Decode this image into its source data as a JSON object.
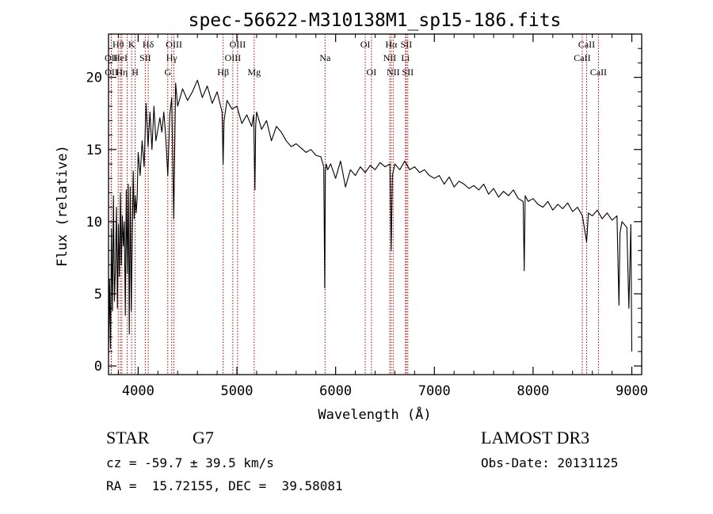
{
  "chart_data": {
    "type": "line",
    "title": "spec-56622-M310138M1_sp15-186.fits",
    "xlabel": "Wavelength (Å)",
    "ylabel": "Flux (relative)",
    "xlim": [
      3700,
      9100
    ],
    "ylim": [
      -0.6,
      23.0
    ],
    "xticks": [
      4000,
      5000,
      6000,
      7000,
      8000,
      9000
    ],
    "xtick_labels": [
      "4000",
      "5000",
      "6000",
      "7000",
      "8000",
      "9000"
    ],
    "yticks": [
      0,
      5,
      10,
      15,
      20
    ],
    "ytick_labels": [
      "0",
      "5",
      "10",
      "15",
      "20"
    ],
    "grid": false,
    "line_color": "#000000",
    "marker_color": "#aa0000",
    "series": [
      {
        "x": [
          3700,
          3710,
          3720,
          3730,
          3740,
          3750,
          3760,
          3770,
          3780,
          3790,
          3800,
          3810,
          3820,
          3830,
          3840,
          3850,
          3860,
          3870,
          3880,
          3890,
          3900,
          3910,
          3920,
          3930,
          3940,
          3950,
          3960,
          3970,
          3980,
          3990,
          4000,
          4020,
          4040,
          4060,
          4080,
          4100,
          4120,
          4140,
          4160,
          4180,
          4200,
          4220,
          4240,
          4260,
          4280,
          4300,
          4320,
          4340,
          4360,
          4380,
          4400,
          4450,
          4500,
          4550,
          4600,
          4650,
          4700,
          4750,
          4800,
          4850,
          4860,
          4870,
          4900,
          4950,
          5000,
          5050,
          5100,
          5150,
          5170,
          5183,
          5190,
          5200,
          5250,
          5300,
          5350,
          5400,
          5450,
          5500,
          5550,
          5600,
          5650,
          5700,
          5750,
          5800,
          5850,
          5880,
          5890,
          5896,
          5905,
          5920,
          5950,
          6000,
          6050,
          6100,
          6150,
          6200,
          6250,
          6300,
          6350,
          6400,
          6450,
          6500,
          6550,
          6563,
          6575,
          6600,
          6650,
          6700,
          6750,
          6800,
          6850,
          6900,
          6950,
          7000,
          7050,
          7100,
          7150,
          7200,
          7250,
          7300,
          7350,
          7400,
          7450,
          7500,
          7550,
          7600,
          7650,
          7700,
          7750,
          7800,
          7850,
          7900,
          7910,
          7920,
          7950,
          8000,
          8050,
          8100,
          8150,
          8200,
          8250,
          8300,
          8350,
          8400,
          8450,
          8500,
          8542,
          8560,
          8600,
          8650,
          8700,
          8750,
          8800,
          8850,
          8870,
          8880,
          8900,
          8950,
          8970,
          8990,
          9000
        ],
        "values": [
          0.8,
          6.0,
          1.2,
          9.5,
          3.8,
          11.8,
          4.5,
          6.8,
          11.0,
          4.0,
          9.8,
          6.2,
          12.0,
          7.0,
          10.4,
          8.3,
          10.0,
          3.5,
          12.2,
          6.4,
          12.6,
          2.2,
          12.4,
          3.8,
          8.6,
          13.5,
          10.2,
          11.8,
          10.6,
          11.6,
          14.8,
          13.2,
          15.6,
          13.8,
          18.2,
          15.2,
          17.6,
          15.0,
          18.0,
          15.6,
          16.4,
          17.2,
          16.2,
          17.6,
          15.8,
          13.2,
          17.4,
          18.6,
          10.2,
          19.6,
          18.0,
          19.2,
          18.4,
          19.0,
          19.8,
          18.6,
          19.4,
          18.2,
          19.0,
          17.6,
          14.0,
          17.0,
          18.4,
          17.8,
          18.0,
          16.8,
          17.4,
          16.6,
          17.4,
          12.2,
          16.6,
          17.6,
          16.4,
          17.0,
          15.6,
          16.6,
          16.2,
          15.6,
          15.2,
          15.4,
          15.1,
          14.8,
          15.0,
          14.6,
          14.5,
          13.8,
          5.4,
          13.4,
          14.0,
          13.6,
          14.0,
          13.0,
          14.2,
          12.4,
          13.6,
          13.2,
          13.8,
          13.4,
          13.9,
          13.6,
          14.1,
          13.8,
          14.0,
          8.0,
          13.2,
          14.0,
          13.6,
          14.2,
          13.6,
          13.8,
          13.4,
          13.6,
          13.2,
          13.0,
          13.2,
          12.6,
          13.1,
          12.4,
          12.8,
          12.6,
          12.3,
          12.5,
          12.2,
          12.6,
          11.9,
          12.3,
          11.7,
          12.1,
          11.8,
          12.2,
          11.6,
          11.4,
          6.6,
          11.8,
          11.4,
          11.6,
          11.2,
          11.0,
          11.4,
          10.8,
          11.2,
          10.9,
          11.3,
          10.7,
          11.0,
          10.4,
          8.6,
          10.6,
          10.4,
          10.8,
          10.2,
          10.6,
          10.1,
          10.4,
          4.2,
          9.2,
          10.0,
          9.6,
          4.0,
          9.8,
          1.0
        ]
      }
    ],
    "line_markers": [
      {
        "x": 3727,
        "label": "OII",
        "row": 2
      },
      {
        "x": 3729,
        "label": "OII",
        "row": 3
      },
      {
        "x": 3798,
        "label": "Hθ",
        "row": 1
      },
      {
        "x": 3820,
        "label": "HeI",
        "row": 2
      },
      {
        "x": 3835,
        "label": "Hη",
        "row": 3
      },
      {
        "x": 3889,
        "label": "",
        "row": 0
      },
      {
        "x": 3934,
        "label": "K",
        "row": 1
      },
      {
        "x": 3969,
        "label": "H",
        "row": 3
      },
      {
        "x": 4072,
        "label": "SII",
        "row": 2
      },
      {
        "x": 4102,
        "label": "Hδ",
        "row": 1
      },
      {
        "x": 4300,
        "label": "G",
        "row": 3
      },
      {
        "x": 4340,
        "label": "Hγ",
        "row": 2
      },
      {
        "x": 4363,
        "label": "OIII",
        "row": 1
      },
      {
        "x": 4861,
        "label": "Hβ",
        "row": 3
      },
      {
        "x": 4959,
        "label": "OIII",
        "row": 2
      },
      {
        "x": 5007,
        "label": "OIII",
        "row": 1
      },
      {
        "x": 5175,
        "label": "Mg",
        "row": 3
      },
      {
        "x": 5893,
        "label": "Na",
        "row": 2
      },
      {
        "x": 6300,
        "label": "OI",
        "row": 1
      },
      {
        "x": 6363,
        "label": "OI",
        "row": 3
      },
      {
        "x": 6548,
        "label": "NII",
        "row": 2
      },
      {
        "x": 6563,
        "label": "Hα",
        "row": 1
      },
      {
        "x": 6583,
        "label": "NII",
        "row": 3
      },
      {
        "x": 6707,
        "label": "Li",
        "row": 2
      },
      {
        "x": 6716,
        "label": "SII",
        "row": 1
      },
      {
        "x": 6731,
        "label": "SII",
        "row": 3
      },
      {
        "x": 8498,
        "label": "CaII",
        "row": 2
      },
      {
        "x": 8542,
        "label": "CaII",
        "row": 1
      },
      {
        "x": 8662,
        "label": "CaII",
        "row": 3
      }
    ]
  },
  "info": {
    "object_class": "STAR",
    "subclass": "G7",
    "survey": "LAMOST DR3",
    "redshift": "cz = -59.7 ± 39.5 km/s",
    "obs_date": "Obs-Date: 20131125",
    "coords": "RA =  15.72155, DEC =  39.58081"
  }
}
